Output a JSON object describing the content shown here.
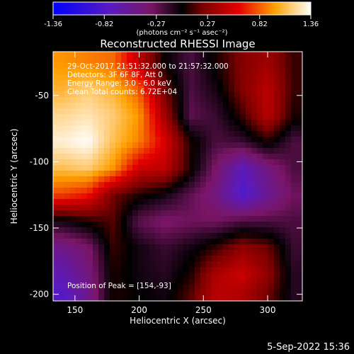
{
  "chart_data": {
    "type": "heatmap",
    "title": "Reconstructed RHESSI Image",
    "xlabel": "Heliocentric X (arcsec)",
    "ylabel": "Heliocentric Y (arcsec)",
    "xlim": [
      133,
      327
    ],
    "ylim": [
      -205,
      -17
    ],
    "x_ticks": [
      150,
      200,
      250,
      300
    ],
    "y_ticks": [
      -50,
      -100,
      -150,
      -200
    ],
    "colorbar": {
      "ticks": [
        "-1.36",
        "-0.82",
        "-0.27",
        "0.27",
        "0.82",
        "1.36"
      ],
      "range": [
        -1.36,
        1.36
      ],
      "unit_label": "(photons cm⁻² s⁻¹ asec⁻²)",
      "colormap": "blue-purple-red-yellow-white"
    },
    "annotations": {
      "time_range": "29-Oct-2017 21:51:32.000 to 21:57:32.000",
      "detectors": "Detectors: 3F 6F 8F, Att 0",
      "energy": "Energy Range: 3.0 - 6.0 keV",
      "clean": "Clean    Total counts: 6.72E+04",
      "peak": "Position of Peak = [154,-93]"
    },
    "peak": [
      154,
      -93
    ],
    "grid_estimate": {
      "x": [
        140,
        160,
        180,
        200,
        220,
        240,
        260,
        280,
        300,
        320
      ],
      "y": [
        -25,
        -45,
        -65,
        -85,
        -105,
        -125,
        -145,
        -165,
        -185,
        -200
      ],
      "z": [
        [
          0.95,
          0.9,
          0.85,
          0.45,
          0.0,
          -0.2,
          0.05,
          0.25,
          0.35,
          0.1
        ],
        [
          1.05,
          1.15,
          1.05,
          0.8,
          0.2,
          -0.2,
          -0.05,
          0.25,
          0.45,
          0.1
        ],
        [
          1.2,
          1.25,
          1.15,
          0.95,
          0.35,
          -0.25,
          -0.15,
          0.1,
          0.45,
          0.05
        ],
        [
          1.3,
          1.36,
          1.1,
          0.9,
          0.55,
          0.05,
          -0.2,
          -0.15,
          0.05,
          -0.2
        ],
        [
          1.1,
          1.15,
          0.95,
          0.5,
          0.45,
          0.05,
          -0.35,
          -0.75,
          -0.45,
          -0.2
        ],
        [
          0.75,
          0.65,
          0.2,
          0.05,
          -0.05,
          -0.25,
          -0.45,
          -0.85,
          -0.55,
          -0.3
        ],
        [
          -0.05,
          0.05,
          0.15,
          -0.25,
          -0.35,
          -0.3,
          -0.3,
          -0.2,
          -0.2,
          -0.2
        ],
        [
          -0.5,
          -0.35,
          0.1,
          -0.05,
          -0.15,
          -0.05,
          0.1,
          0.3,
          0.2,
          -0.15
        ],
        [
          -0.7,
          -0.45,
          0.05,
          -0.05,
          -0.1,
          0.05,
          0.4,
          0.5,
          0.3,
          -0.1
        ],
        [
          -0.8,
          -0.5,
          0.05,
          0.0,
          -0.05,
          0.15,
          0.45,
          0.4,
          0.2,
          -0.1
        ]
      ]
    }
  },
  "footer": {
    "date_stamp": "5-Sep-2022 15:36"
  }
}
